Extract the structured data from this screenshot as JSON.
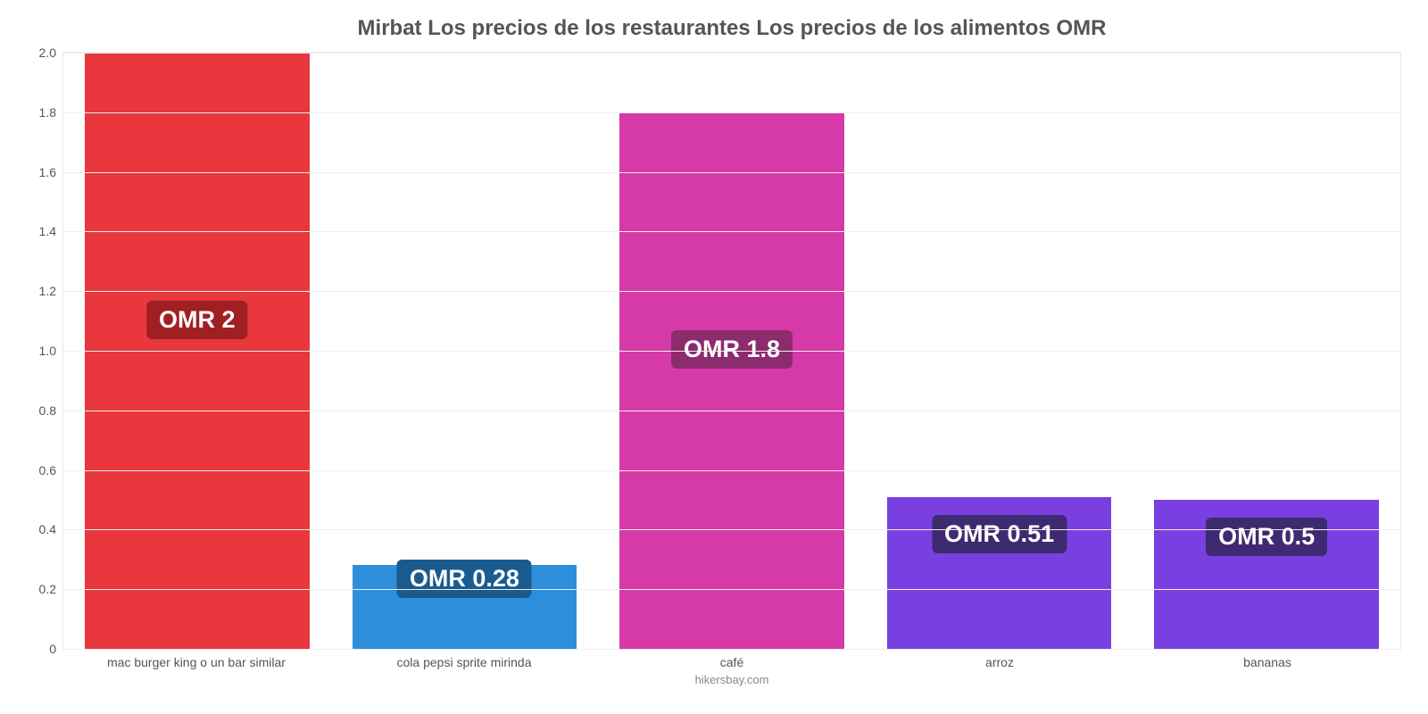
{
  "chart": {
    "type": "bar",
    "title": "Mirbat Los precios de los restaurantes Los precios de los alimentos OMR",
    "title_fontsize": 24,
    "title_color": "#555555",
    "currency_prefix": "OMR ",
    "ylim": [
      0,
      2.0
    ],
    "ytick_step": 0.2,
    "yticks": [
      "0",
      "0.2",
      "0.4",
      "0.6",
      "0.8",
      "1.0",
      "1.2",
      "1.4",
      "1.6",
      "1.8",
      "2.0"
    ],
    "grid_color": "#eeeeee",
    "plot_border_color": "#e8e8e8",
    "background_color": "#ffffff",
    "axis_label_color": "#555555",
    "axis_label_fontsize": 14,
    "badge_fontsize": 27,
    "badge_text_color": "#ffffff",
    "bar_width_pct": 84,
    "source_text": "hikersbay.com",
    "bars": [
      {
        "category": "mac burger king o un bar similar",
        "value": 2.0,
        "value_label": "OMR 2",
        "bar_color": "#e8373d",
        "badge_color": "#a01f22",
        "badge_y": 1.1
      },
      {
        "category": "cola pepsi sprite mirinda",
        "value": 0.28,
        "value_label": "OMR 0.28",
        "bar_color": "#2d8fdb",
        "badge_color": "#1a5b8f",
        "badge_y": 0.23
      },
      {
        "category": "café",
        "value": 1.8,
        "value_label": "OMR 1.8",
        "bar_color": "#d63aa8",
        "badge_color": "#8d2b6f",
        "badge_y": 1.0
      },
      {
        "category": "arroz",
        "value": 0.51,
        "value_label": "OMR 0.51",
        "bar_color": "#7a3fe0",
        "badge_color": "#3d2a70",
        "badge_y": 0.38
      },
      {
        "category": "bananas",
        "value": 0.5,
        "value_label": "OMR 0.5",
        "bar_color": "#7a3fe0",
        "badge_color": "#3d2a70",
        "badge_y": 0.37
      }
    ]
  }
}
